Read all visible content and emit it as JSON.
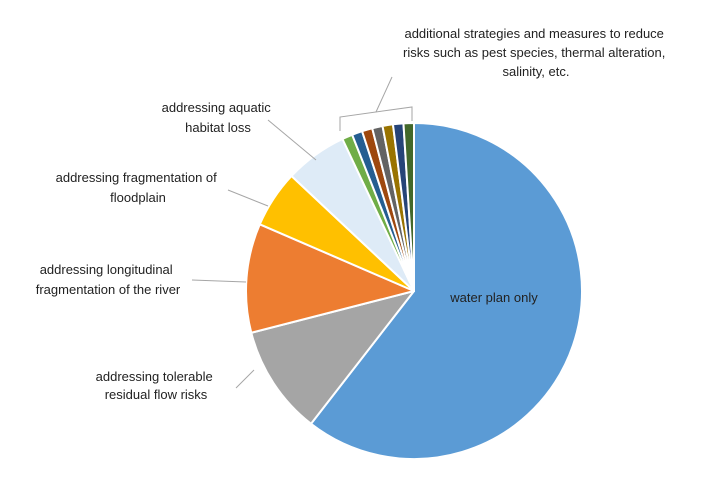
{
  "chart_data": {
    "type": "pie",
    "title": "",
    "start_angle_deg": 0,
    "direction": "clockwise",
    "slices": [
      {
        "label": "water plan only",
        "value": 60.5,
        "color": "#5B9BD5"
      },
      {
        "label": "addressing tolerable residual flow risks",
        "value": 10.5,
        "color": "#A5A5A5"
      },
      {
        "label": "addressing longitudinal fragmentation of the river",
        "value": 10.5,
        "color": "#ED7D31"
      },
      {
        "label": "addressing fragmentation of floodplain",
        "value": 5.5,
        "color": "#FFC000"
      },
      {
        "label": "addressing aquatic habitat loss",
        "value": 6.0,
        "color": "#DEEBF7"
      },
      {
        "label": "",
        "value": 1.0,
        "color": "#70AD47"
      },
      {
        "label": "",
        "value": 1.0,
        "color": "#255E91"
      },
      {
        "label": "",
        "value": 1.0,
        "color": "#9E480E"
      },
      {
        "label": "",
        "value": 1.0,
        "color": "#636363"
      },
      {
        "label": "",
        "value": 1.0,
        "color": "#997300"
      },
      {
        "label": "",
        "value": 1.0,
        "color": "#264478"
      },
      {
        "label": "",
        "value": 1.0,
        "color": "#43682B"
      }
    ],
    "grouped_label": "additional strategies and measures to reduce risks such as pest species, thermal alteration, salinity, etc.",
    "label_lines": {
      "water_plan": [
        "water plan only"
      ],
      "tolerable": [
        "addressing tolerable",
        "residual flow risks"
      ],
      "longitudinal": [
        "addressing longitudinal",
        "fragmentation of the river"
      ],
      "floodplain": [
        "addressing fragmentation of",
        "floodplain"
      ],
      "aquatic": [
        "addressing aquatic",
        "habitat loss"
      ],
      "additional": [
        "additional strategies and measures to reduce",
        "risks such as pest species, thermal alteration,",
        "salinity, etc."
      ]
    }
  }
}
